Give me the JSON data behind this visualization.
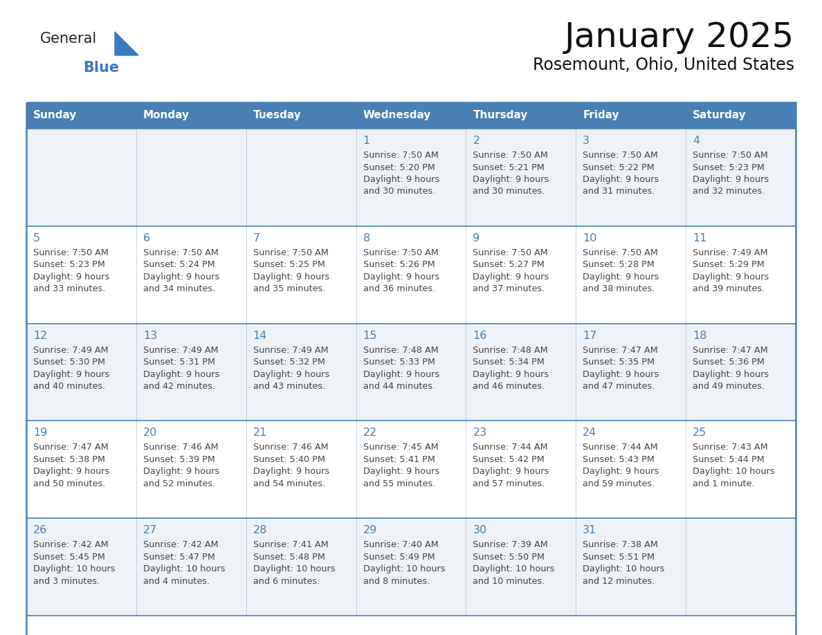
{
  "title": "January 2025",
  "subtitle": "Rosemount, Ohio, United States",
  "header_bg": "#4a7fb5",
  "header_text_color": "#ffffff",
  "cell_bg_odd": "#eef2f7",
  "cell_bg_even": "#ffffff",
  "day_number_color": "#4a7fb5",
  "text_color": "#444444",
  "border_color": "#4a7fb5",
  "line_color": "#4a7fb5",
  "days_of_week": [
    "Sunday",
    "Monday",
    "Tuesday",
    "Wednesday",
    "Thursday",
    "Friday",
    "Saturday"
  ],
  "logo_text1": "General",
  "logo_text2": "Blue",
  "logo_color1": "#222222",
  "logo_color2": "#3a7bbf",
  "logo_triangle_color": "#3a7bbf",
  "calendar_data": [
    [
      null,
      null,
      null,
      {
        "day": 1,
        "sunrise": "7:50 AM",
        "sunset": "5:20 PM",
        "daylight": "9 hours\nand 30 minutes."
      },
      {
        "day": 2,
        "sunrise": "7:50 AM",
        "sunset": "5:21 PM",
        "daylight": "9 hours\nand 30 minutes."
      },
      {
        "day": 3,
        "sunrise": "7:50 AM",
        "sunset": "5:22 PM",
        "daylight": "9 hours\nand 31 minutes."
      },
      {
        "day": 4,
        "sunrise": "7:50 AM",
        "sunset": "5:23 PM",
        "daylight": "9 hours\nand 32 minutes."
      }
    ],
    [
      {
        "day": 5,
        "sunrise": "7:50 AM",
        "sunset": "5:23 PM",
        "daylight": "9 hours\nand 33 minutes."
      },
      {
        "day": 6,
        "sunrise": "7:50 AM",
        "sunset": "5:24 PM",
        "daylight": "9 hours\nand 34 minutes."
      },
      {
        "day": 7,
        "sunrise": "7:50 AM",
        "sunset": "5:25 PM",
        "daylight": "9 hours\nand 35 minutes."
      },
      {
        "day": 8,
        "sunrise": "7:50 AM",
        "sunset": "5:26 PM",
        "daylight": "9 hours\nand 36 minutes."
      },
      {
        "day": 9,
        "sunrise": "7:50 AM",
        "sunset": "5:27 PM",
        "daylight": "9 hours\nand 37 minutes."
      },
      {
        "day": 10,
        "sunrise": "7:50 AM",
        "sunset": "5:28 PM",
        "daylight": "9 hours\nand 38 minutes."
      },
      {
        "day": 11,
        "sunrise": "7:49 AM",
        "sunset": "5:29 PM",
        "daylight": "9 hours\nand 39 minutes."
      }
    ],
    [
      {
        "day": 12,
        "sunrise": "7:49 AM",
        "sunset": "5:30 PM",
        "daylight": "9 hours\nand 40 minutes."
      },
      {
        "day": 13,
        "sunrise": "7:49 AM",
        "sunset": "5:31 PM",
        "daylight": "9 hours\nand 42 minutes."
      },
      {
        "day": 14,
        "sunrise": "7:49 AM",
        "sunset": "5:32 PM",
        "daylight": "9 hours\nand 43 minutes."
      },
      {
        "day": 15,
        "sunrise": "7:48 AM",
        "sunset": "5:33 PM",
        "daylight": "9 hours\nand 44 minutes."
      },
      {
        "day": 16,
        "sunrise": "7:48 AM",
        "sunset": "5:34 PM",
        "daylight": "9 hours\nand 46 minutes."
      },
      {
        "day": 17,
        "sunrise": "7:47 AM",
        "sunset": "5:35 PM",
        "daylight": "9 hours\nand 47 minutes."
      },
      {
        "day": 18,
        "sunrise": "7:47 AM",
        "sunset": "5:36 PM",
        "daylight": "9 hours\nand 49 minutes."
      }
    ],
    [
      {
        "day": 19,
        "sunrise": "7:47 AM",
        "sunset": "5:38 PM",
        "daylight": "9 hours\nand 50 minutes."
      },
      {
        "day": 20,
        "sunrise": "7:46 AM",
        "sunset": "5:39 PM",
        "daylight": "9 hours\nand 52 minutes."
      },
      {
        "day": 21,
        "sunrise": "7:46 AM",
        "sunset": "5:40 PM",
        "daylight": "9 hours\nand 54 minutes."
      },
      {
        "day": 22,
        "sunrise": "7:45 AM",
        "sunset": "5:41 PM",
        "daylight": "9 hours\nand 55 minutes."
      },
      {
        "day": 23,
        "sunrise": "7:44 AM",
        "sunset": "5:42 PM",
        "daylight": "9 hours\nand 57 minutes."
      },
      {
        "day": 24,
        "sunrise": "7:44 AM",
        "sunset": "5:43 PM",
        "daylight": "9 hours\nand 59 minutes."
      },
      {
        "day": 25,
        "sunrise": "7:43 AM",
        "sunset": "5:44 PM",
        "daylight": "10 hours\nand 1 minute."
      }
    ],
    [
      {
        "day": 26,
        "sunrise": "7:42 AM",
        "sunset": "5:45 PM",
        "daylight": "10 hours\nand 3 minutes."
      },
      {
        "day": 27,
        "sunrise": "7:42 AM",
        "sunset": "5:47 PM",
        "daylight": "10 hours\nand 4 minutes."
      },
      {
        "day": 28,
        "sunrise": "7:41 AM",
        "sunset": "5:48 PM",
        "daylight": "10 hours\nand 6 minutes."
      },
      {
        "day": 29,
        "sunrise": "7:40 AM",
        "sunset": "5:49 PM",
        "daylight": "10 hours\nand 8 minutes."
      },
      {
        "day": 30,
        "sunrise": "7:39 AM",
        "sunset": "5:50 PM",
        "daylight": "10 hours\nand 10 minutes."
      },
      {
        "day": 31,
        "sunrise": "7:38 AM",
        "sunset": "5:51 PM",
        "daylight": "10 hours\nand 12 minutes."
      },
      null
    ]
  ]
}
